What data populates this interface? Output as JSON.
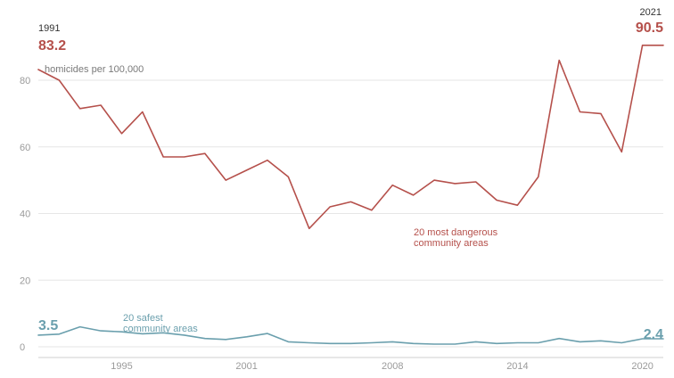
{
  "chart_data": {
    "type": "line",
    "ylabel": "homicides per 100,000",
    "ylim": [
      0,
      90
    ],
    "y_ticks": [
      0,
      20,
      40,
      60,
      80
    ],
    "x_ticks": [
      1995,
      2001,
      2008,
      2014,
      2020
    ],
    "x_tick_labels": [
      "1995",
      "2001",
      "2008",
      "2014",
      "2020"
    ],
    "grid": true,
    "colors": {
      "dangerous": "#b5504b",
      "safest": "#6a9fad"
    },
    "x": [
      1991,
      1992,
      1993,
      1994,
      1995,
      1996,
      1997,
      1998,
      1999,
      2000,
      2001,
      2002,
      2003,
      2004,
      2005,
      2006,
      2007,
      2008,
      2009,
      2010,
      2011,
      2012,
      2013,
      2014,
      2015,
      2016,
      2017,
      2018,
      2019,
      2020,
      2021
    ],
    "series": [
      {
        "key": "dangerous",
        "name_lines": [
          "20 most dangerous",
          "community areas"
        ],
        "values": [
          83.2,
          80.0,
          71.5,
          72.5,
          64.0,
          70.5,
          57.0,
          57.0,
          58.0,
          50.0,
          53.0,
          56.0,
          51.0,
          35.5,
          42.0,
          43.5,
          41.0,
          48.5,
          45.5,
          50.0,
          49.0,
          49.5,
          44.0,
          42.5,
          51.0,
          86.0,
          70.5,
          70.0,
          58.5,
          90.5,
          90.5
        ]
      },
      {
        "key": "safest",
        "name_lines": [
          "20 safest",
          "community areas"
        ],
        "values": [
          3.5,
          3.8,
          6.0,
          4.8,
          4.5,
          3.9,
          4.2,
          3.5,
          2.5,
          2.2,
          3.0,
          4.0,
          1.5,
          1.2,
          1.0,
          1.0,
          1.2,
          1.5,
          1.0,
          0.8,
          0.8,
          1.5,
          1.0,
          1.2,
          1.2,
          2.5,
          1.5,
          1.8,
          1.2,
          2.4,
          2.4
        ]
      }
    ],
    "annotations": {
      "start_year": "1991",
      "start_dangerous": "83.2",
      "start_safest": "3.5",
      "end_year": "2021",
      "end_dangerous": "90.5",
      "end_safest": "2.4"
    }
  }
}
